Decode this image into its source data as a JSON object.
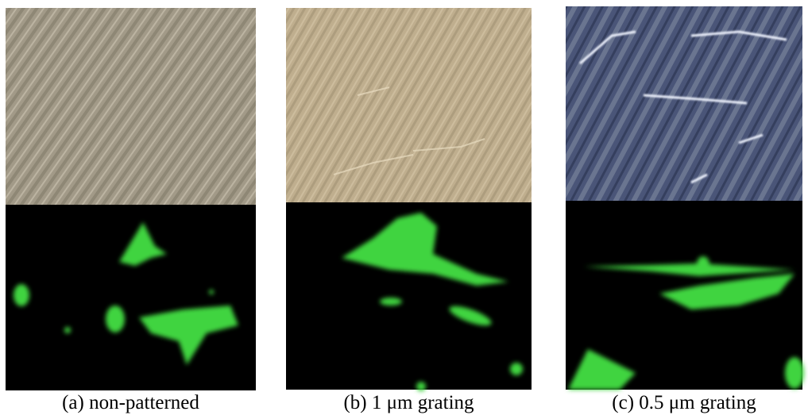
{
  "panels": [
    {
      "caption": "(a) non-patterned"
    },
    {
      "caption": "(b) 1 μm grating"
    },
    {
      "caption": "(c) 0.5 μm grating"
    }
  ]
}
